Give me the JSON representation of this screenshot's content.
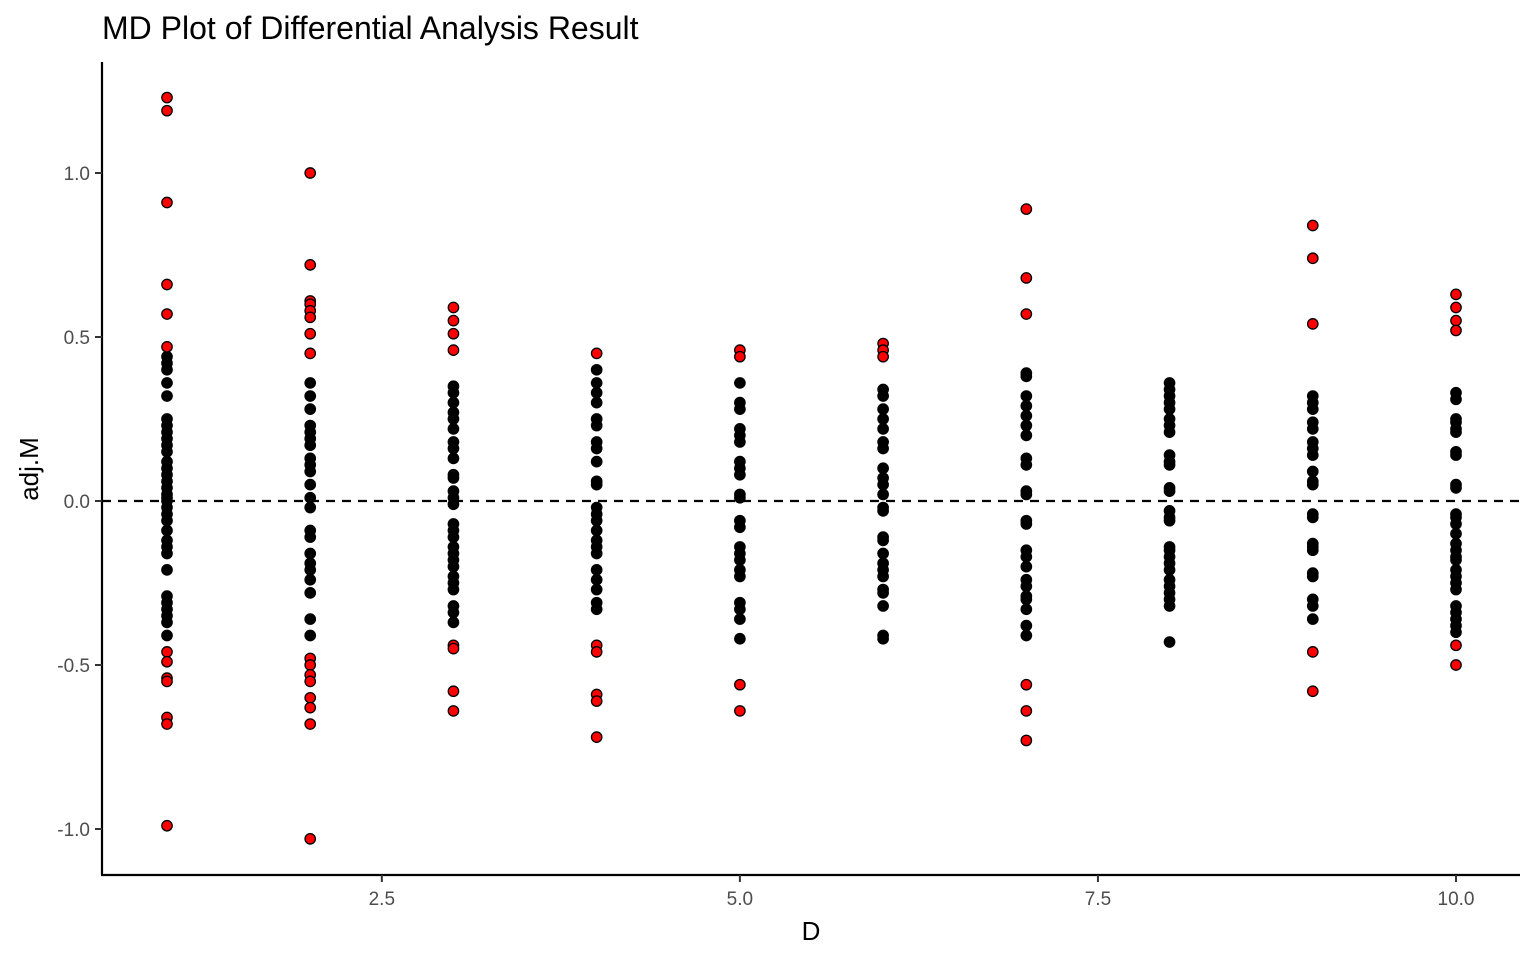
{
  "chart_data": {
    "type": "scatter",
    "title": "MD Plot of Differential Analysis Result",
    "xlabel": "D",
    "ylabel": "adj.M",
    "xlim": [
      0.55,
      10.45
    ],
    "ylim": [
      -1.13,
      1.33
    ],
    "x_ticks": [
      2.5,
      5.0,
      7.5,
      10.0
    ],
    "x_tick_labels": [
      "2.5",
      "5.0",
      "7.5",
      "10.0"
    ],
    "y_ticks": [
      -1.0,
      -0.5,
      0.0,
      0.5,
      1.0
    ],
    "y_tick_labels": [
      "-1.0",
      "-0.5",
      "0.0",
      "0.5",
      "1.0"
    ],
    "reference_line": {
      "y": 0,
      "style": "dashed"
    },
    "grid": false,
    "legend": "none",
    "colors": {
      "significant": "#ff0000",
      "not_significant": "#000000"
    },
    "groups": [
      {
        "x": 1,
        "red": [
          1.23,
          1.19,
          0.91,
          0.66,
          0.57,
          0.47,
          -0.46,
          -0.49,
          -0.54,
          -0.55,
          -0.66,
          -0.68,
          -0.99
        ],
        "black": [
          0.44,
          0.42,
          0.4,
          0.36,
          0.32,
          0.25,
          0.23,
          0.21,
          0.19,
          0.17,
          0.15,
          0.12,
          0.1,
          0.08,
          0.06,
          0.04,
          0.02,
          0.01,
          0.0,
          -0.02,
          -0.04,
          -0.06,
          -0.09,
          -0.12,
          -0.14,
          -0.16,
          -0.21,
          -0.29,
          -0.31,
          -0.33,
          -0.35,
          -0.37,
          -0.41
        ]
      },
      {
        "x": 2,
        "red": [
          1.0,
          0.72,
          0.61,
          0.6,
          0.58,
          0.56,
          0.51,
          0.45,
          -0.48,
          -0.5,
          -0.53,
          -0.55,
          -0.6,
          -0.63,
          -0.68,
          -1.03
        ],
        "black": [
          0.36,
          0.32,
          0.28,
          0.23,
          0.21,
          0.19,
          0.17,
          0.13,
          0.11,
          0.09,
          0.05,
          0.01,
          -0.02,
          -0.09,
          -0.11,
          -0.16,
          -0.19,
          -0.21,
          -0.24,
          -0.28,
          -0.36,
          -0.41
        ]
      },
      {
        "x": 3,
        "red": [
          0.59,
          0.55,
          0.51,
          0.46,
          -0.44,
          -0.45,
          -0.58,
          -0.64
        ],
        "black": [
          0.35,
          0.33,
          0.3,
          0.27,
          0.25,
          0.22,
          0.18,
          0.16,
          0.13,
          0.08,
          0.07,
          0.03,
          0.01,
          -0.01,
          -0.07,
          -0.09,
          -0.11,
          -0.14,
          -0.16,
          -0.18,
          -0.2,
          -0.23,
          -0.25,
          -0.27,
          -0.32,
          -0.34,
          -0.37
        ]
      },
      {
        "x": 4,
        "red": [
          0.45,
          -0.44,
          -0.46,
          -0.59,
          -0.61,
          -0.72
        ],
        "black": [
          0.4,
          0.36,
          0.33,
          0.3,
          0.25,
          0.23,
          0.18,
          0.16,
          0.12,
          0.06,
          0.05,
          -0.02,
          -0.04,
          -0.06,
          -0.09,
          -0.12,
          -0.14,
          -0.16,
          -0.21,
          -0.24,
          -0.27,
          -0.31,
          -0.33
        ]
      },
      {
        "x": 5,
        "red": [
          0.46,
          0.44,
          -0.56,
          -0.64
        ],
        "black": [
          0.36,
          0.3,
          0.28,
          0.22,
          0.2,
          0.18,
          0.12,
          0.1,
          0.08,
          0.02,
          0.01,
          -0.06,
          -0.08,
          -0.14,
          -0.16,
          -0.18,
          -0.21,
          -0.23,
          -0.31,
          -0.33,
          -0.36,
          -0.42
        ]
      },
      {
        "x": 6,
        "red": [
          0.48,
          0.46,
          0.44
        ],
        "black": [
          0.34,
          0.32,
          0.28,
          0.25,
          0.22,
          0.18,
          0.16,
          0.1,
          0.07,
          0.05,
          0.02,
          -0.02,
          -0.03,
          -0.11,
          -0.12,
          -0.16,
          -0.19,
          -0.21,
          -0.23,
          -0.27,
          -0.28,
          -0.32,
          -0.41,
          -0.42
        ]
      },
      {
        "x": 7,
        "red": [
          0.89,
          0.68,
          0.57,
          -0.56,
          -0.64,
          -0.73
        ],
        "black": [
          0.39,
          0.38,
          0.32,
          0.29,
          0.26,
          0.23,
          0.2,
          0.13,
          0.11,
          0.03,
          0.02,
          -0.06,
          -0.07,
          -0.15,
          -0.17,
          -0.2,
          -0.24,
          -0.26,
          -0.29,
          -0.3,
          -0.33,
          -0.38,
          -0.41
        ]
      },
      {
        "x": 8,
        "red": [],
        "black": [
          0.36,
          0.34,
          0.32,
          0.3,
          0.28,
          0.25,
          0.23,
          0.21,
          0.14,
          0.12,
          0.11,
          0.04,
          0.03,
          -0.03,
          -0.05,
          -0.06,
          -0.14,
          -0.15,
          -0.17,
          -0.19,
          -0.21,
          -0.24,
          -0.26,
          -0.28,
          -0.3,
          -0.32,
          -0.43
        ]
      },
      {
        "x": 9,
        "red": [
          0.84,
          0.74,
          0.54,
          -0.46,
          -0.58
        ],
        "black": [
          0.32,
          0.3,
          0.28,
          0.24,
          0.22,
          0.18,
          0.16,
          0.14,
          0.09,
          0.06,
          0.05,
          -0.04,
          -0.05,
          -0.13,
          -0.14,
          -0.15,
          -0.22,
          -0.23,
          -0.3,
          -0.32,
          -0.36
        ]
      },
      {
        "x": 10,
        "red": [
          0.63,
          0.59,
          0.55,
          0.52,
          -0.44,
          -0.5
        ],
        "black": [
          0.33,
          0.31,
          0.25,
          0.24,
          0.22,
          0.21,
          0.15,
          0.14,
          0.05,
          0.04,
          -0.04,
          -0.05,
          -0.07,
          -0.1,
          -0.13,
          -0.15,
          -0.17,
          -0.18,
          -0.21,
          -0.23,
          -0.25,
          -0.27,
          -0.32,
          -0.34,
          -0.36,
          -0.38,
          -0.4
        ]
      }
    ]
  }
}
